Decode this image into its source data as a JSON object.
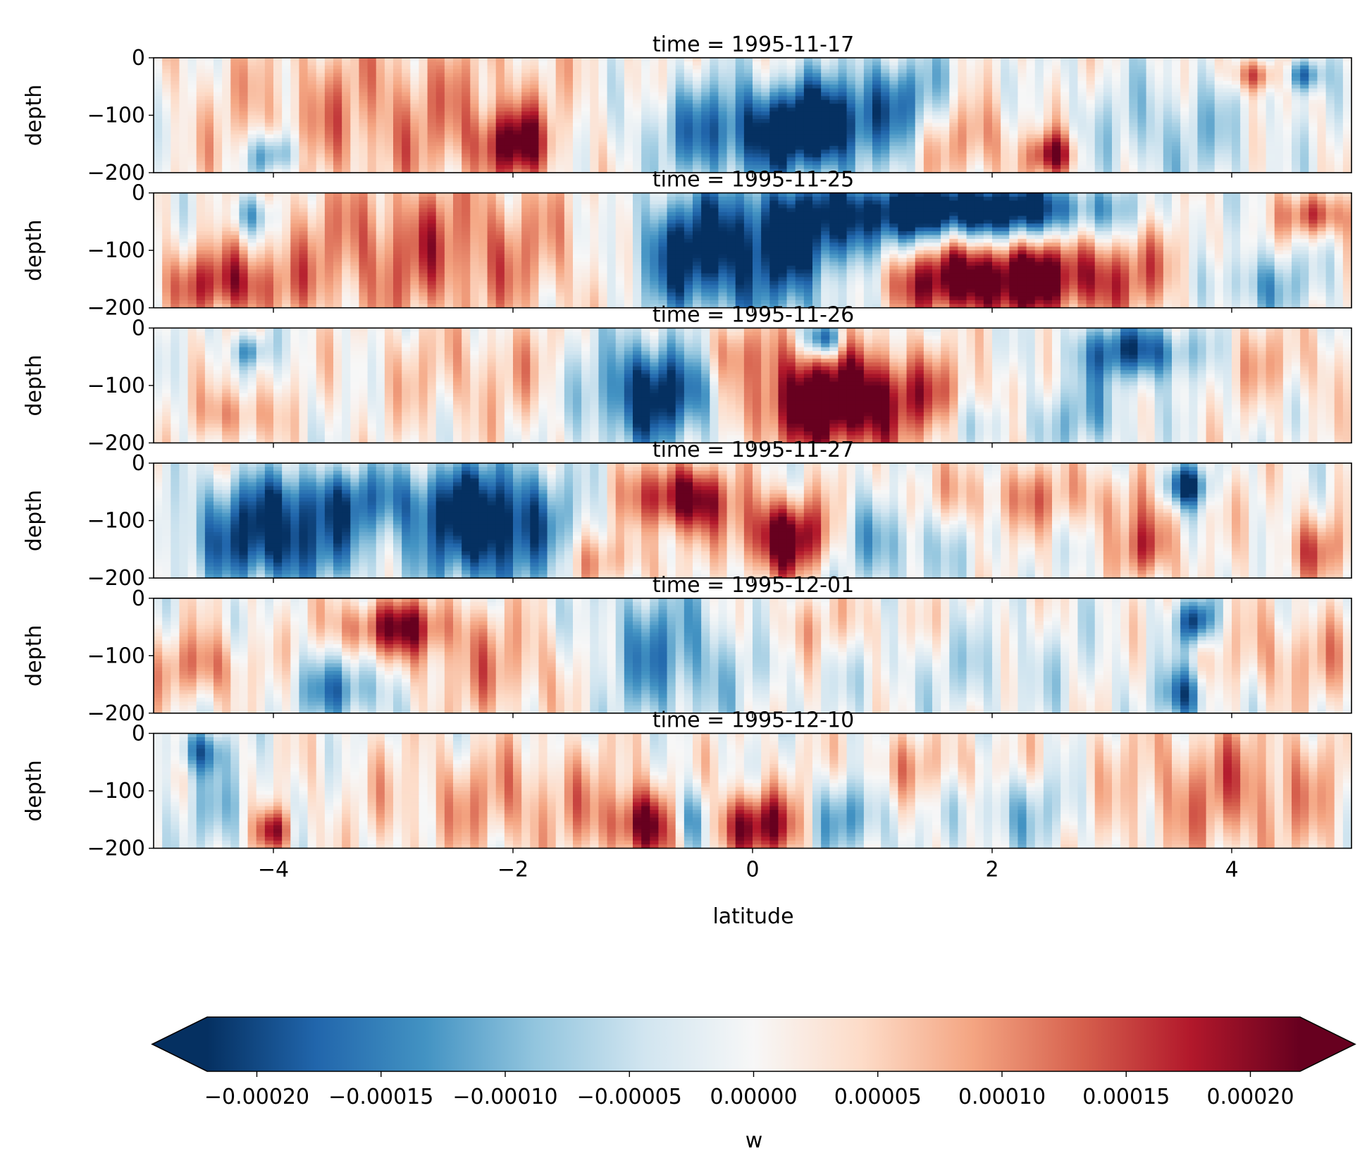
{
  "chart_data": {
    "type": "heatmap",
    "variable_label": "w",
    "xlabel": "latitude",
    "ylabel": "depth",
    "xlim": [
      -5,
      5
    ],
    "ylim": [
      -200,
      0
    ],
    "xticks": [
      -4,
      -2,
      0,
      2,
      4
    ],
    "yticks": [
      0,
      -100,
      -200
    ],
    "colormap": "RdBu_r",
    "colorbar": {
      "label": "w",
      "vmin": -0.00022,
      "vmax": 0.00022,
      "extend": "both",
      "orientation": "horizontal",
      "ticks": [
        -0.0002,
        -0.00015,
        -0.0001,
        -5e-05,
        0,
        5e-05,
        0.0001,
        0.00015,
        0.0002
      ],
      "tick_labels": [
        "−0.00020",
        "−0.00015",
        "−0.00010",
        "−0.00005",
        "0.00000",
        "0.00005",
        "0.00010",
        "0.00015",
        "0.00020"
      ],
      "colors": [
        "#053061",
        "#2166ac",
        "#4393c3",
        "#92c5de",
        "#d1e5f0",
        "#f7f7f7",
        "#fddbc7",
        "#f4a582",
        "#d6604d",
        "#b2182b",
        "#67001f"
      ]
    },
    "panels": [
      {
        "title": "time = 1995-11-17",
        "blobs": [
          {
            "lat": 0.0,
            "depth": -130,
            "w_lat": 0.9,
            "w_d": 90,
            "v": -0.9
          },
          {
            "lat": 0.55,
            "depth": -120,
            "w_lat": 0.4,
            "w_d": 70,
            "v": -0.7
          },
          {
            "lat": 1.2,
            "depth": -70,
            "w_lat": 0.5,
            "w_d": 80,
            "v": -0.6
          },
          {
            "lat": -3.0,
            "depth": -100,
            "w_lat": 1.6,
            "w_d": 150,
            "v": 0.45
          },
          {
            "lat": -2.0,
            "depth": -150,
            "w_lat": 0.3,
            "w_d": 60,
            "v": 0.8
          },
          {
            "lat": -4.0,
            "depth": -170,
            "w_lat": 0.2,
            "w_d": 40,
            "v": -0.8
          },
          {
            "lat": 2.5,
            "depth": -170,
            "w_lat": 0.2,
            "w_d": 40,
            "v": 0.9
          },
          {
            "lat": 4.6,
            "depth": -30,
            "w_lat": 0.15,
            "w_d": 30,
            "v": -0.9
          },
          {
            "lat": 4.2,
            "depth": -30,
            "w_lat": 0.2,
            "w_d": 30,
            "v": 0.7
          },
          {
            "lat": 3.5,
            "depth": -130,
            "w_lat": 0.7,
            "w_d": 100,
            "v": -0.35
          },
          {
            "lat": 1.8,
            "depth": -140,
            "w_lat": 0.4,
            "w_d": 80,
            "v": 0.5
          }
        ]
      },
      {
        "title": "time = 1995-11-25",
        "blobs": [
          {
            "lat": 0.3,
            "depth": -100,
            "w_lat": 1.0,
            "w_d": 120,
            "v": -1.2
          },
          {
            "lat": -0.6,
            "depth": -110,
            "w_lat": 0.4,
            "w_d": 100,
            "v": -0.6
          },
          {
            "lat": 1.9,
            "depth": -30,
            "w_lat": 1.1,
            "w_d": 50,
            "v": -1.3
          },
          {
            "lat": 1.9,
            "depth": -150,
            "w_lat": 1.2,
            "w_d": 70,
            "v": 1.3
          },
          {
            "lat": -2.7,
            "depth": -100,
            "w_lat": 1.4,
            "w_d": 140,
            "v": 0.6
          },
          {
            "lat": -4.2,
            "depth": -40,
            "w_lat": 0.2,
            "w_d": 40,
            "v": -0.6
          },
          {
            "lat": -4.4,
            "depth": -160,
            "w_lat": 0.5,
            "w_d": 60,
            "v": 0.7
          },
          {
            "lat": 4.7,
            "depth": -40,
            "w_lat": 0.25,
            "w_d": 40,
            "v": 0.8
          },
          {
            "lat": 4.2,
            "depth": -160,
            "w_lat": 0.5,
            "w_d": 60,
            "v": -0.5
          },
          {
            "lat": 3.2,
            "depth": -110,
            "w_lat": 0.6,
            "w_d": 120,
            "v": 0.2
          }
        ]
      },
      {
        "title": "time = 1995-11-26",
        "blobs": [
          {
            "lat": -0.8,
            "depth": -110,
            "w_lat": 0.6,
            "w_d": 100,
            "v": -1.2
          },
          {
            "lat": 0.75,
            "depth": -130,
            "w_lat": 0.9,
            "w_d": 90,
            "v": 1.3
          },
          {
            "lat": 0.6,
            "depth": -20,
            "w_lat": 0.15,
            "w_d": 30,
            "v": -1.0
          },
          {
            "lat": -0.2,
            "depth": -40,
            "w_lat": 0.5,
            "w_d": 60,
            "v": 0.4
          },
          {
            "lat": 3.2,
            "depth": -40,
            "w_lat": 0.5,
            "w_d": 50,
            "v": -0.9
          },
          {
            "lat": 2.8,
            "depth": -150,
            "w_lat": 0.4,
            "w_d": 70,
            "v": -0.4
          },
          {
            "lat": -2.2,
            "depth": -80,
            "w_lat": 1.0,
            "w_d": 100,
            "v": 0.3
          },
          {
            "lat": -4.2,
            "depth": -40,
            "w_lat": 0.15,
            "w_d": 30,
            "v": -0.6
          },
          {
            "lat": -4.3,
            "depth": -150,
            "w_lat": 0.3,
            "w_d": 50,
            "v": 0.5
          },
          {
            "lat": 4.4,
            "depth": -60,
            "w_lat": 0.5,
            "w_d": 70,
            "v": 0.3
          },
          {
            "lat": 1.8,
            "depth": -170,
            "w_lat": 0.6,
            "w_d": 50,
            "v": -0.3
          }
        ]
      },
      {
        "title": "time = 1995-11-27",
        "blobs": [
          {
            "lat": -2.2,
            "depth": -110,
            "w_lat": 0.6,
            "w_d": 110,
            "v": -1.2
          },
          {
            "lat": -4.0,
            "depth": -140,
            "w_lat": 0.7,
            "w_d": 80,
            "v": -1.0
          },
          {
            "lat": -3.5,
            "depth": -60,
            "w_lat": 1.0,
            "w_d": 60,
            "v": -0.6
          },
          {
            "lat": -0.6,
            "depth": -60,
            "w_lat": 0.4,
            "w_d": 60,
            "v": 1.1
          },
          {
            "lat": 0.3,
            "depth": -130,
            "w_lat": 0.4,
            "w_d": 70,
            "v": 1.3
          },
          {
            "lat": 1.0,
            "depth": -130,
            "w_lat": 0.7,
            "w_d": 90,
            "v": -0.5
          },
          {
            "lat": 2.3,
            "depth": -60,
            "w_lat": 1.4,
            "w_d": 60,
            "v": 0.4
          },
          {
            "lat": 3.6,
            "depth": -40,
            "w_lat": 0.2,
            "w_d": 40,
            "v": -1.1
          },
          {
            "lat": 3.3,
            "depth": -150,
            "w_lat": 0.2,
            "w_d": 60,
            "v": 0.8
          },
          {
            "lat": -1.2,
            "depth": -170,
            "w_lat": 0.4,
            "w_d": 50,
            "v": 0.4
          },
          {
            "lat": 4.7,
            "depth": -150,
            "w_lat": 0.3,
            "w_d": 60,
            "v": 0.5
          }
        ]
      },
      {
        "title": "time = 1995-12-01",
        "blobs": [
          {
            "lat": -0.8,
            "depth": -100,
            "w_lat": 0.7,
            "w_d": 120,
            "v": -0.7
          },
          {
            "lat": -3.0,
            "depth": -50,
            "w_lat": 0.5,
            "w_d": 50,
            "v": 0.8
          },
          {
            "lat": -3.4,
            "depth": -160,
            "w_lat": 0.4,
            "w_d": 60,
            "v": -0.7
          },
          {
            "lat": -2.0,
            "depth": -120,
            "w_lat": 1.0,
            "w_d": 100,
            "v": 0.4
          },
          {
            "lat": 0.6,
            "depth": -50,
            "w_lat": 0.8,
            "w_d": 60,
            "v": 0.25
          },
          {
            "lat": 3.7,
            "depth": -40,
            "w_lat": 0.15,
            "w_d": 40,
            "v": -1.0
          },
          {
            "lat": 3.6,
            "depth": -170,
            "w_lat": 0.2,
            "w_d": 50,
            "v": -0.8
          },
          {
            "lat": 4.5,
            "depth": -100,
            "w_lat": 0.6,
            "w_d": 80,
            "v": 0.35
          },
          {
            "lat": 1.8,
            "depth": -120,
            "w_lat": 1.2,
            "w_d": 80,
            "v": -0.2
          },
          {
            "lat": -4.6,
            "depth": -120,
            "w_lat": 0.4,
            "w_d": 60,
            "v": 0.5
          }
        ]
      },
      {
        "title": "time = 1995-12-10",
        "blobs": [
          {
            "lat": 0.0,
            "depth": -160,
            "w_lat": 0.4,
            "w_d": 60,
            "v": 1.0
          },
          {
            "lat": -0.9,
            "depth": -160,
            "w_lat": 0.3,
            "w_d": 60,
            "v": 0.9
          },
          {
            "lat": -0.5,
            "depth": -150,
            "w_lat": 0.2,
            "w_d": 60,
            "v": -0.9
          },
          {
            "lat": -4.0,
            "depth": -170,
            "w_lat": 0.15,
            "w_d": 40,
            "v": 0.9
          },
          {
            "lat": -4.6,
            "depth": -30,
            "w_lat": 0.2,
            "w_d": 40,
            "v": -0.7
          },
          {
            "lat": -2.0,
            "depth": -120,
            "w_lat": 1.2,
            "w_d": 100,
            "v": 0.4
          },
          {
            "lat": 4.0,
            "depth": -100,
            "w_lat": 1.0,
            "w_d": 120,
            "v": 0.5
          },
          {
            "lat": 0.8,
            "depth": -150,
            "w_lat": 0.3,
            "w_d": 70,
            "v": -0.6
          },
          {
            "lat": 2.2,
            "depth": -130,
            "w_lat": 0.5,
            "w_d": 80,
            "v": -0.4
          },
          {
            "lat": -4.5,
            "depth": -130,
            "w_lat": 0.4,
            "w_d": 80,
            "v": -0.3
          },
          {
            "lat": 1.5,
            "depth": -60,
            "w_lat": 0.8,
            "w_d": 60,
            "v": 0.3
          }
        ]
      }
    ]
  }
}
